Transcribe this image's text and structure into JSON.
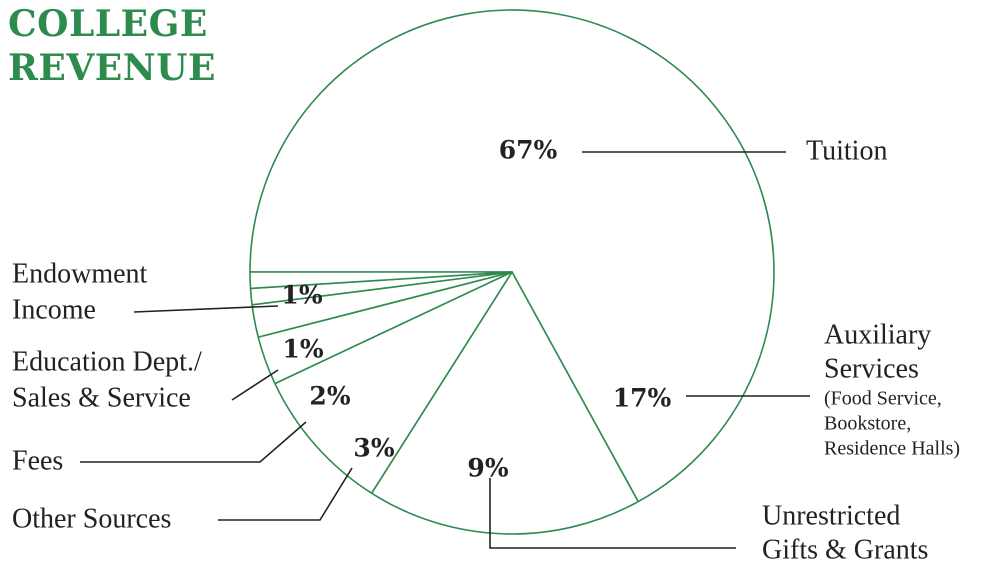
{
  "title_lines": [
    "COLLEGE",
    "REVENUE"
  ],
  "colors": {
    "accent": "#2e8b4e",
    "ink": "#222222",
    "background": "#ffffff"
  },
  "chart_data": {
    "type": "pie",
    "title": "COLLEGE REVENUE",
    "slices": [
      {
        "label": "Tuition",
        "value": 67,
        "value_label": "67%",
        "label_lines": [
          "Tuition"
        ]
      },
      {
        "label": "Auxiliary Services (Food Service, Bookstore, Residence Halls)",
        "value": 17,
        "value_label": "17%",
        "label_lines": [
          "Auxiliary",
          "Services"
        ],
        "sub_lines": [
          "(Food Service,",
          "Bookstore,",
          "Residence Halls)"
        ]
      },
      {
        "label": "Unrestricted Gifts & Grants",
        "value": 9,
        "value_label": "9%",
        "label_lines": [
          "Unrestricted",
          "Gifts & Grants"
        ]
      },
      {
        "label": "Other Sources",
        "value": 3,
        "value_label": "3%",
        "label_lines": [
          "Other Sources"
        ]
      },
      {
        "label": "Fees",
        "value": 2,
        "value_label": "2%",
        "label_lines": [
          "Fees"
        ]
      },
      {
        "label": "Education Dept./ Sales & Service",
        "value": 1,
        "value_label": "1%",
        "label_lines": [
          "Education Dept./",
          "Sales & Service"
        ]
      },
      {
        "label": "Endowment Income",
        "value": 1,
        "value_label": "1%",
        "label_lines": [
          "Endowment",
          "Income"
        ]
      }
    ]
  }
}
